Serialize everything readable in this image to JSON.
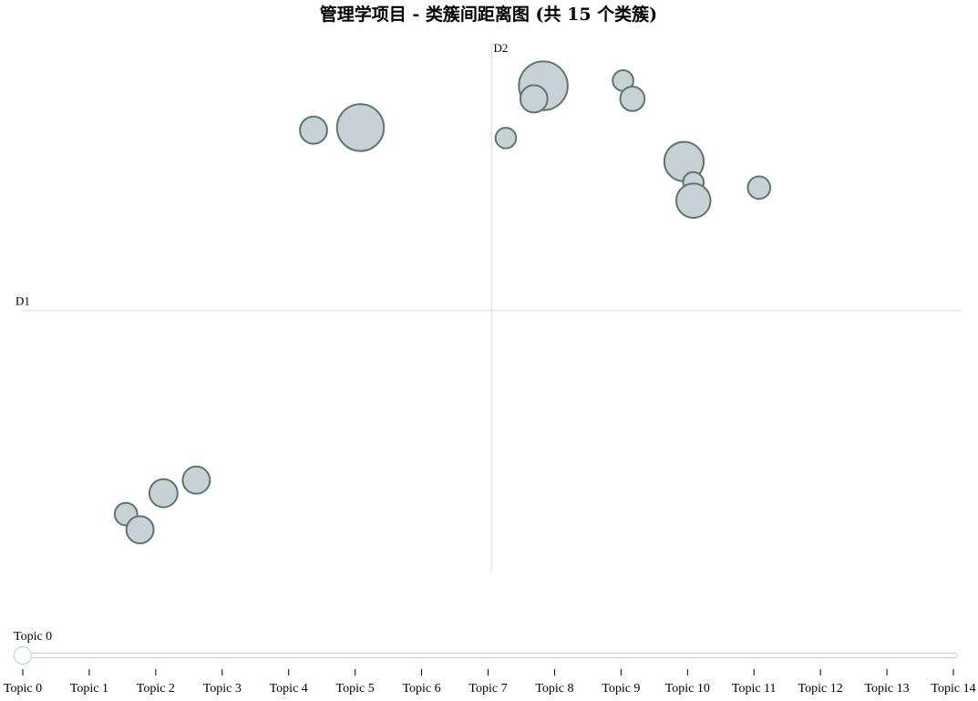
{
  "chart_data": {
    "type": "scatter",
    "title": "管理学项目 - 类簇间距离图 (共 15 个类簇)",
    "xlabel": "D1",
    "ylabel": "D2",
    "xlim": [
      -1,
      1
    ],
    "ylim": [
      -1,
      1
    ],
    "grid": false,
    "points": [
      {
        "x": 0.11,
        "y": 0.86,
        "r": 0.104
      },
      {
        "x": 0.09,
        "y": 0.81,
        "r": 0.058
      },
      {
        "x": 0.03,
        "y": 0.66,
        "r": 0.044
      },
      {
        "x": 0.28,
        "y": 0.88,
        "r": 0.044
      },
      {
        "x": 0.3,
        "y": 0.81,
        "r": 0.052
      },
      {
        "x": -0.28,
        "y": 0.7,
        "r": 0.1
      },
      {
        "x": -0.38,
        "y": 0.69,
        "r": 0.058
      },
      {
        "x": 0.41,
        "y": 0.57,
        "r": 0.084
      },
      {
        "x": 0.43,
        "y": 0.49,
        "r": 0.044
      },
      {
        "x": 0.43,
        "y": 0.42,
        "r": 0.073
      },
      {
        "x": 0.57,
        "y": 0.47,
        "r": 0.048
      },
      {
        "x": -0.7,
        "y": -0.7,
        "r": 0.06
      },
      {
        "x": -0.63,
        "y": -0.65,
        "r": 0.058
      },
      {
        "x": -0.78,
        "y": -0.78,
        "r": 0.048
      },
      {
        "x": -0.75,
        "y": -0.84,
        "r": 0.058
      }
    ]
  },
  "slider": {
    "current_label": "Topic 0",
    "value": 0,
    "min": 0,
    "max": 14,
    "ticks": [
      "Topic 0",
      "Topic 1",
      "Topic 2",
      "Topic 3",
      "Topic 4",
      "Topic 5",
      "Topic 6",
      "Topic 7",
      "Topic 8",
      "Topic 9",
      "Topic 10",
      "Topic 11",
      "Topic 12",
      "Topic 13",
      "Topic 14"
    ]
  }
}
